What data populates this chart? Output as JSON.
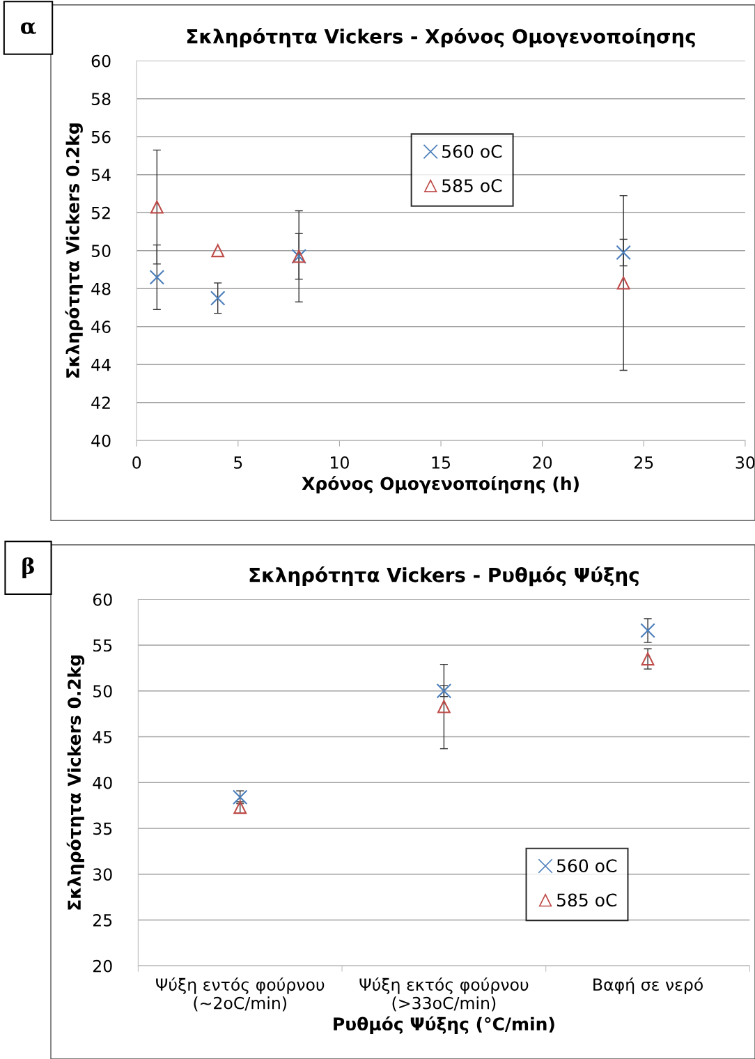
{
  "chart_data": [
    {
      "type": "scatter",
      "title": "Σκληρότητα Vickers - Χρόνος Ομογενοποίησης",
      "xlabel": "Χρόνος Ομογενοποίησης (h)",
      "ylabel": "Σκληρότητα Vickers 0.2kg",
      "annotations": [
        "α"
      ],
      "x": [
        1,
        4,
        8,
        24
      ],
      "series": [
        {
          "name": "560 oC",
          "color": "#4a7ebb",
          "marker": "cross",
          "values": [
            48.6,
            47.5,
            49.7,
            49.9
          ],
          "errors": [
            1.7,
            0.8,
            1.2,
            0.7
          ]
        },
        {
          "name": "585 oC",
          "color": "#be4b48",
          "marker": "triangle",
          "values": [
            52.3,
            50.0,
            49.7,
            48.3
          ],
          "errors": [
            3.0,
            null,
            2.4,
            4.6
          ]
        }
      ],
      "xlim": [
        0,
        30
      ],
      "xticks": [
        0,
        5,
        10,
        15,
        20,
        25,
        30
      ],
      "ylim": [
        40,
        60
      ],
      "yticks": [
        40,
        42,
        44,
        46,
        48,
        50,
        52,
        54,
        56,
        58,
        60
      ],
      "grid": "y",
      "legend": "top"
    },
    {
      "type": "scatter",
      "title": "Σκληρότητα Vickers - Ρυθμός Ψύξης",
      "xlabel": "Ρυθμός Ψύξης (°C/min)",
      "ylabel": "Σκληρότητα Vickers 0.2kg",
      "annotations": [
        "β"
      ],
      "categories": [
        "Ψύξη εντός φούρνου (~2oC/min)",
        "Ψύξη εκτός φούρνου (>33oC/min)",
        "Βαφή σε νερό"
      ],
      "series": [
        {
          "name": "560 oC",
          "color": "#4a7ebb",
          "marker": "cross",
          "values": [
            38.4,
            50.0,
            56.6
          ],
          "errors": [
            0.7,
            0.6,
            1.3
          ]
        },
        {
          "name": "585 oC",
          "color": "#be4b48",
          "marker": "triangle",
          "values": [
            37.3,
            48.3,
            53.5
          ],
          "errors": [
            0.6,
            4.6,
            1.1
          ]
        }
      ],
      "ylim": [
        20,
        60
      ],
      "yticks": [
        20,
        25,
        30,
        35,
        40,
        45,
        50,
        55,
        60
      ],
      "grid": "y",
      "legend": "bottom right"
    }
  ]
}
